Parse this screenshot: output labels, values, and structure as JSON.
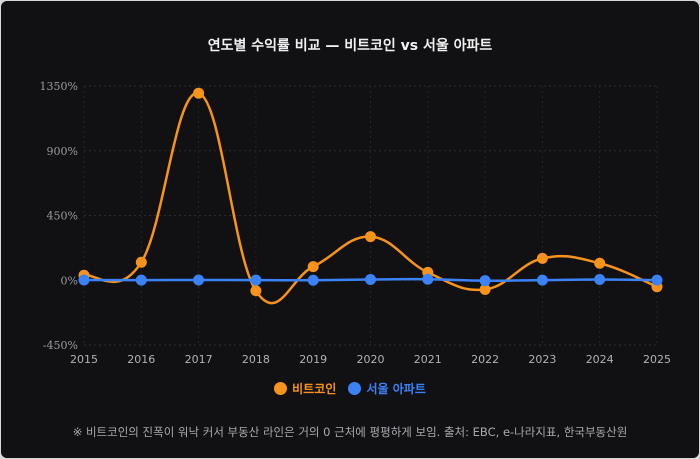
{
  "chart_data": {
    "type": "line",
    "title": "연도별 수익률 비교 — 비트코인 vs 서울 아파트",
    "categories": [
      "2015",
      "2016",
      "2017",
      "2018",
      "2019",
      "2020",
      "2021",
      "2022",
      "2023",
      "2024",
      "2025"
    ],
    "series": [
      {
        "name": "비트코인",
        "color": "#f7931a",
        "values": [
          35,
          125,
          1300,
          -73,
          95,
          303,
          55,
          -64,
          152,
          118,
          -45
        ]
      },
      {
        "name": "서울 아파트",
        "color": "#3b82f6",
        "values": [
          2,
          1,
          2,
          1,
          0,
          5,
          7,
          -3,
          1,
          5,
          1
        ]
      }
    ],
    "ylim": [
      -450,
      1350
    ],
    "yticks": [
      -450,
      0,
      450,
      900,
      1350
    ],
    "ytick_labels": [
      "-450%",
      "0%",
      "450%",
      "900%",
      "1350%"
    ],
    "grid": true,
    "legend_position": "bottom",
    "xlabel": "",
    "ylabel": "",
    "note": "※ 비트코인의 진폭이 워낙 커서 부동산 라인은 거의 0 근처에 평평하게 보임. 출처: EBC, e-나라지표, 한국부동산원"
  }
}
